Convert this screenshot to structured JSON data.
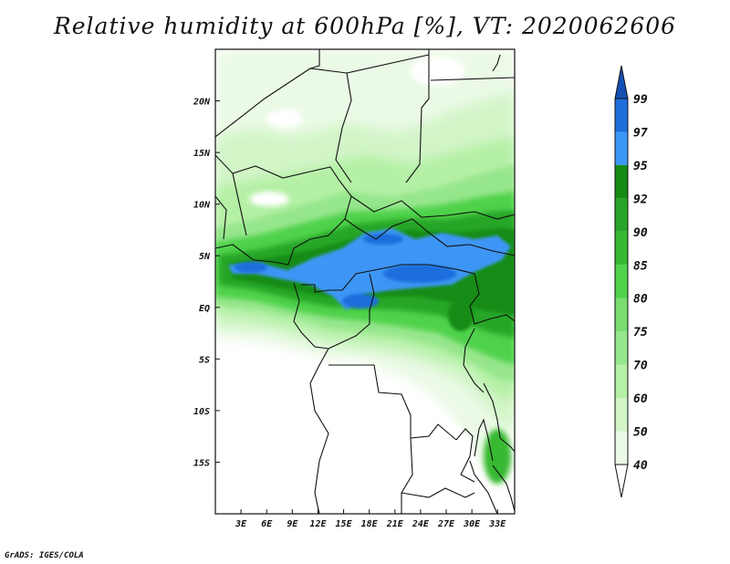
{
  "title": "Relative humidity at 600hPa [%], VT: 2020062606",
  "credit": "GrADS: IGES/COLA",
  "map": {
    "lon_range": [
      0,
      35
    ],
    "lat_range": [
      -20,
      25
    ],
    "lon_ticks": [
      {
        "value": 3,
        "label": "3E"
      },
      {
        "value": 6,
        "label": "6E"
      },
      {
        "value": 9,
        "label": "9E"
      },
      {
        "value": 12,
        "label": "12E"
      },
      {
        "value": 15,
        "label": "15E"
      },
      {
        "value": 18,
        "label": "18E"
      },
      {
        "value": 21,
        "label": "21E"
      },
      {
        "value": 24,
        "label": "24E"
      },
      {
        "value": 27,
        "label": "27E"
      },
      {
        "value": 30,
        "label": "30E"
      },
      {
        "value": 33,
        "label": "33E"
      }
    ],
    "lat_ticks": [
      {
        "value": 20,
        "label": "20N"
      },
      {
        "value": 15,
        "label": "15N"
      },
      {
        "value": 10,
        "label": "10N"
      },
      {
        "value": 5,
        "label": "5N"
      },
      {
        "value": 0,
        "label": "EQ"
      },
      {
        "value": -5,
        "label": "5S"
      },
      {
        "value": -10,
        "label": "10S"
      },
      {
        "value": -15,
        "label": "15S"
      }
    ]
  },
  "colorbar": {
    "levels": [
      {
        "label": "40",
        "color": "#ebfae6"
      },
      {
        "label": "50",
        "color": "#d2f5c8"
      },
      {
        "label": "60",
        "color": "#b4f0a5"
      },
      {
        "label": "70",
        "color": "#96e68c"
      },
      {
        "label": "75",
        "color": "#78dc6e"
      },
      {
        "label": "80",
        "color": "#50d24b"
      },
      {
        "label": "85",
        "color": "#37b932"
      },
      {
        "label": "90",
        "color": "#28a528"
      },
      {
        "label": "92",
        "color": "#148c14"
      },
      {
        "label": "95",
        "color": "#3c96f5"
      },
      {
        "label": "97",
        "color": "#1e6edc"
      },
      {
        "label": "99",
        "color": "#1450c8"
      }
    ],
    "below_color": "#ffffff",
    "above_color": "#1450b4"
  }
}
